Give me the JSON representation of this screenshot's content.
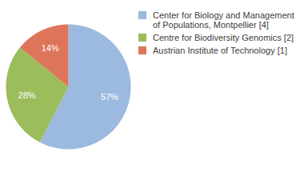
{
  "chart_data": {
    "type": "pie",
    "categories": [
      "Center for Biology and Management of Populations, Montpellier [4]",
      "Centre for Biodiversity Genomics [2]",
      "Austrian Institute of Technology [1]"
    ],
    "values": [
      57,
      28,
      14
    ],
    "value_labels": [
      "57%",
      "28%",
      "14%"
    ],
    "colors": [
      "#9cb9e0",
      "#9bbd5c",
      "#dd755a"
    ],
    "data_labels": true,
    "legend": "right"
  }
}
